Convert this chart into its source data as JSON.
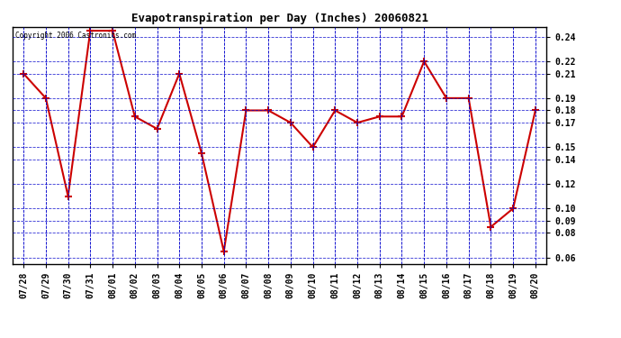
{
  "title": "Evapotranspiration per Day (Inches) 20060821",
  "copyright_text": "Copyright 2006 Castronics.com",
  "x_labels": [
    "07/28",
    "07/29",
    "07/30",
    "07/31",
    "08/01",
    "08/02",
    "08/03",
    "08/04",
    "08/05",
    "08/06",
    "08/07",
    "08/08",
    "08/09",
    "08/10",
    "08/11",
    "08/12",
    "08/13",
    "08/14",
    "08/15",
    "08/16",
    "08/17",
    "08/18",
    "08/19",
    "08/20"
  ],
  "y_values": [
    0.21,
    0.19,
    0.11,
    0.245,
    0.245,
    0.175,
    0.165,
    0.21,
    0.145,
    0.065,
    0.18,
    0.18,
    0.17,
    0.15,
    0.18,
    0.17,
    0.175,
    0.175,
    0.22,
    0.19,
    0.19,
    0.085,
    0.1,
    0.18
  ],
  "line_color": "#cc0000",
  "marker_color": "#cc0000",
  "grid_color": "#0000cc",
  "background_color": "#ffffff",
  "plot_bg_color": "#ffffff",
  "ylim_min": 0.055,
  "ylim_max": 0.248,
  "yticks": [
    0.06,
    0.08,
    0.09,
    0.1,
    0.12,
    0.14,
    0.15,
    0.17,
    0.18,
    0.19,
    0.21,
    0.22,
    0.24
  ],
  "title_fontsize": 9,
  "tick_fontsize": 7
}
